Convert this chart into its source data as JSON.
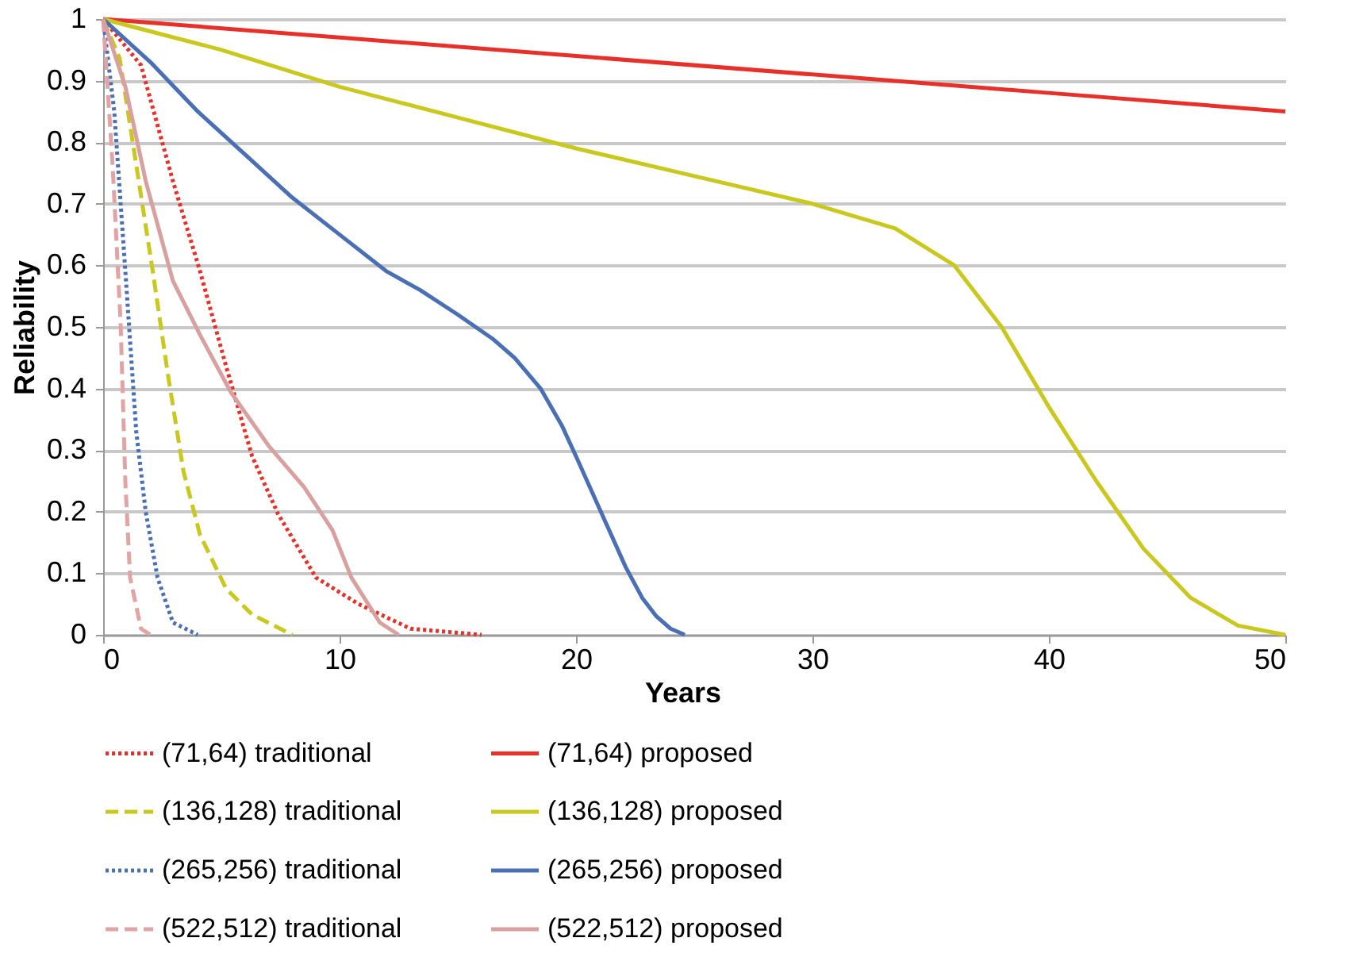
{
  "chart_data": {
    "type": "line",
    "xlabel": "Years",
    "ylabel": "Reliability",
    "xlim": [
      0,
      50
    ],
    "xticks": [
      0,
      10,
      20,
      30,
      40,
      50
    ],
    "ylim": [
      0,
      1
    ],
    "yticks": [
      0,
      0.1,
      0.2,
      0.3,
      0.4,
      0.5,
      0.6,
      0.7,
      0.8,
      0.9,
      1
    ],
    "grid": "y",
    "legend": "bottom",
    "marker": "none",
    "series": [
      {
        "name": "(71,64) traditional",
        "color": "#e8302a",
        "line_style": "dotted",
        "x": [
          0,
          1.6,
          2.95,
          4.1,
          5.2,
          6.3,
          7.4,
          9.0,
          10.8,
          13.0,
          16
        ],
        "values": [
          1,
          0.925,
          0.737,
          0.59,
          0.436,
          0.29,
          0.196,
          0.093,
          0.05,
          0.01,
          0
        ]
      },
      {
        "name": "(71,64) proposed",
        "color": "#e8302a",
        "line_style": "solid",
        "x": [
          0,
          10,
          20,
          30,
          40,
          50
        ],
        "values": [
          1,
          0.97,
          0.94,
          0.91,
          0.88,
          0.85
        ]
      },
      {
        "name": "(136,128) traditional",
        "color": "#c8c81e",
        "line_style": "dashed",
        "x": [
          0,
          0.7,
          1.4,
          2.1,
          2.75,
          3.4,
          4.1,
          5.2,
          6.3,
          8
        ],
        "values": [
          1,
          0.936,
          0.763,
          0.59,
          0.42,
          0.265,
          0.162,
          0.075,
          0.033,
          0
        ]
      },
      {
        "name": "(136,128) proposed",
        "color": "#c8c81e",
        "line_style": "solid",
        "x": [
          0,
          5,
          10,
          15,
          20,
          25,
          30,
          33.5,
          36,
          38,
          40,
          42,
          44,
          46,
          48,
          50
        ],
        "values": [
          1,
          0.95,
          0.89,
          0.84,
          0.79,
          0.745,
          0.7,
          0.66,
          0.6,
          0.5,
          0.37,
          0.25,
          0.14,
          0.06,
          0.015,
          0
        ]
      },
      {
        "name": "(265,256) traditional",
        "color": "#4a6fb5",
        "line_style": "dotted",
        "x": [
          0,
          0.47,
          0.94,
          1.4,
          1.8,
          2.3,
          2.95,
          4
        ],
        "values": [
          1,
          0.85,
          0.59,
          0.33,
          0.2,
          0.093,
          0.02,
          0
        ]
      },
      {
        "name": "(265,256) proposed",
        "color": "#4a6fb5",
        "line_style": "solid",
        "x": [
          0,
          2,
          4,
          6,
          8,
          10,
          12,
          13.4,
          15,
          16.5,
          17.4,
          18.5,
          19.4,
          20,
          20.7,
          21.4,
          22.1,
          22.8,
          23.4,
          24,
          24.6
        ],
        "values": [
          1,
          0.93,
          0.85,
          0.78,
          0.71,
          0.65,
          0.59,
          0.56,
          0.52,
          0.48,
          0.45,
          0.4,
          0.34,
          0.29,
          0.23,
          0.17,
          0.11,
          0.06,
          0.03,
          0.01,
          0
        ]
      },
      {
        "name": "(522,512) traditional",
        "color": "#e0a4a4",
        "line_style": "dashed",
        "x": [
          0,
          0.4,
          0.74,
          0.94,
          1.14,
          1.6,
          2
        ],
        "values": [
          1,
          0.763,
          0.505,
          0.247,
          0.093,
          0.01,
          0
        ]
      },
      {
        "name": "(522,512) proposed",
        "color": "#d9a0a0",
        "line_style": "solid",
        "x": [
          0,
          0.94,
          1.8,
          2.95,
          4.1,
          5.4,
          7.0,
          8.5,
          9.7,
          10.5,
          11.7,
          12.5
        ],
        "values": [
          1,
          0.89,
          0.737,
          0.575,
          0.487,
          0.394,
          0.307,
          0.24,
          0.17,
          0.093,
          0.02,
          0
        ]
      }
    ]
  }
}
